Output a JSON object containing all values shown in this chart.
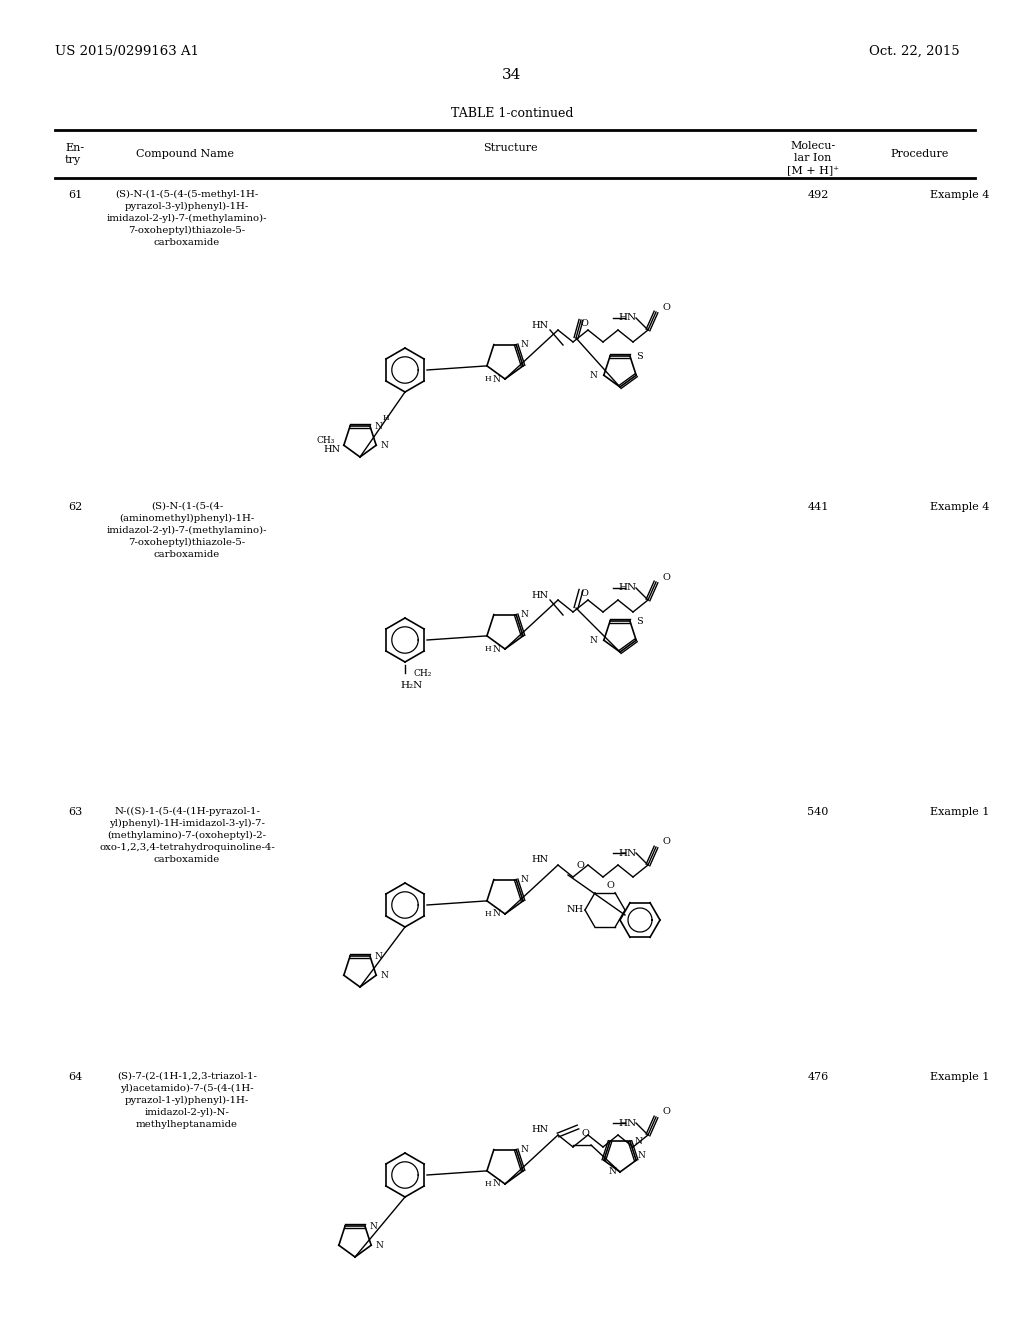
{
  "page_number": "34",
  "patent_number": "US 2015/0299163 A1",
  "patent_date": "Oct. 22, 2015",
  "table_title": "TABLE 1-continued",
  "header_col1": "En-\ntry",
  "header_col2": "Compound Name",
  "header_col3": "Structure",
  "header_col4": "Molecu-\nlar Ion\n[M + H]⁺",
  "header_col5": "Procedure",
  "entries": [
    {
      "number": "61",
      "name": "(S)-N-(1-(5-(4-(5-methyl-1H-\npyrazol-3-yl)phenyl)-1H-\nimidazol-2-yl)-7-(methylamino)-\n7-oxoheptyl)thiazole-5-\ncarboxamide",
      "mol_ion": "492",
      "procedure": "Example 4"
    },
    {
      "number": "62",
      "name": "(S)-N-(1-(5-(4-\n(aminomethyl)phenyl)-1H-\nimidazol-2-yl)-7-(methylamino)-\n7-oxoheptyl)thiazole-5-\ncarboxamide",
      "mol_ion": "441",
      "procedure": "Example 4"
    },
    {
      "number": "63",
      "name": "N-((S)-1-(5-(4-(1H-pyrazol-1-\nyl)phenyl)-1H-imidazol-3-yl)-7-\n(methylamino)-7-(oxoheptyl)-2-\noxo-1,2,3,4-tetrahydroquinoline-4-\ncarboxamide",
      "mol_ion": "540",
      "procedure": "Example 1"
    },
    {
      "number": "64",
      "name": "(S)-7-(2-(1H-1,2,3-triazol-1-\nyl)acetamido)-7-(5-(4-(1H-\npyrazol-1-yl)phenyl)-1H-\nimidazol-2-yl)-N-\nmethylheptanamide",
      "mol_ion": "476",
      "procedure": "Example 1"
    }
  ],
  "bg_color": "#ffffff",
  "text_color": "#000000",
  "line_color": "#000000"
}
